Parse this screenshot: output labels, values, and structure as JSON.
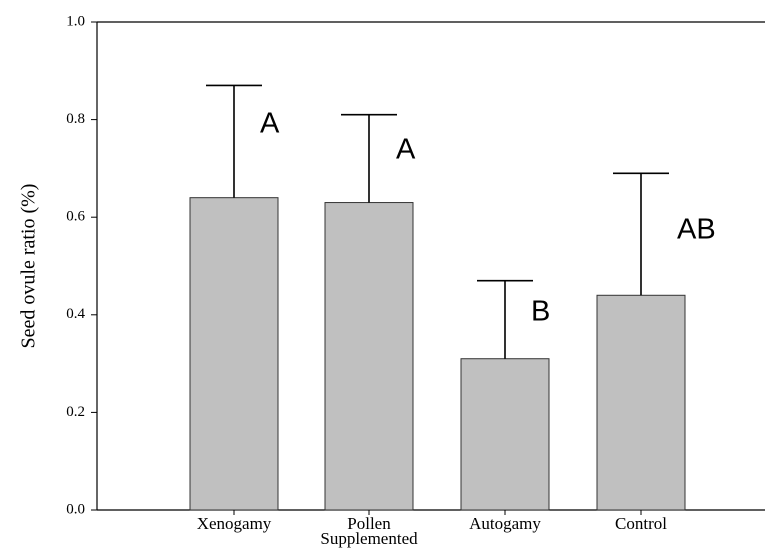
{
  "chart_data": {
    "type": "bar",
    "y_label": "Seed ovule ratio (%)",
    "categories": [
      "Xenogamy",
      "Pollen Supplemented",
      "Autogamy",
      "Control"
    ],
    "values": [
      0.64,
      0.63,
      0.31,
      0.44
    ],
    "errors": [
      0.23,
      0.18,
      0.16,
      0.25
    ],
    "annotations": [
      "A",
      "A",
      "B",
      "AB"
    ],
    "color": "#c0c0c0",
    "ylim": [
      0,
      1
    ],
    "yticks": [
      {
        "value": 0,
        "label": "0.0"
      },
      {
        "value": 0.2,
        "label": "0.2"
      },
      {
        "value": 0.4,
        "label": "0.4"
      },
      {
        "value": 0.6,
        "label": "0.6"
      },
      {
        "value": 0.8,
        "label": "0.8"
      },
      {
        "value": 1,
        "label": "1.0"
      }
    ],
    "grid": false
  }
}
